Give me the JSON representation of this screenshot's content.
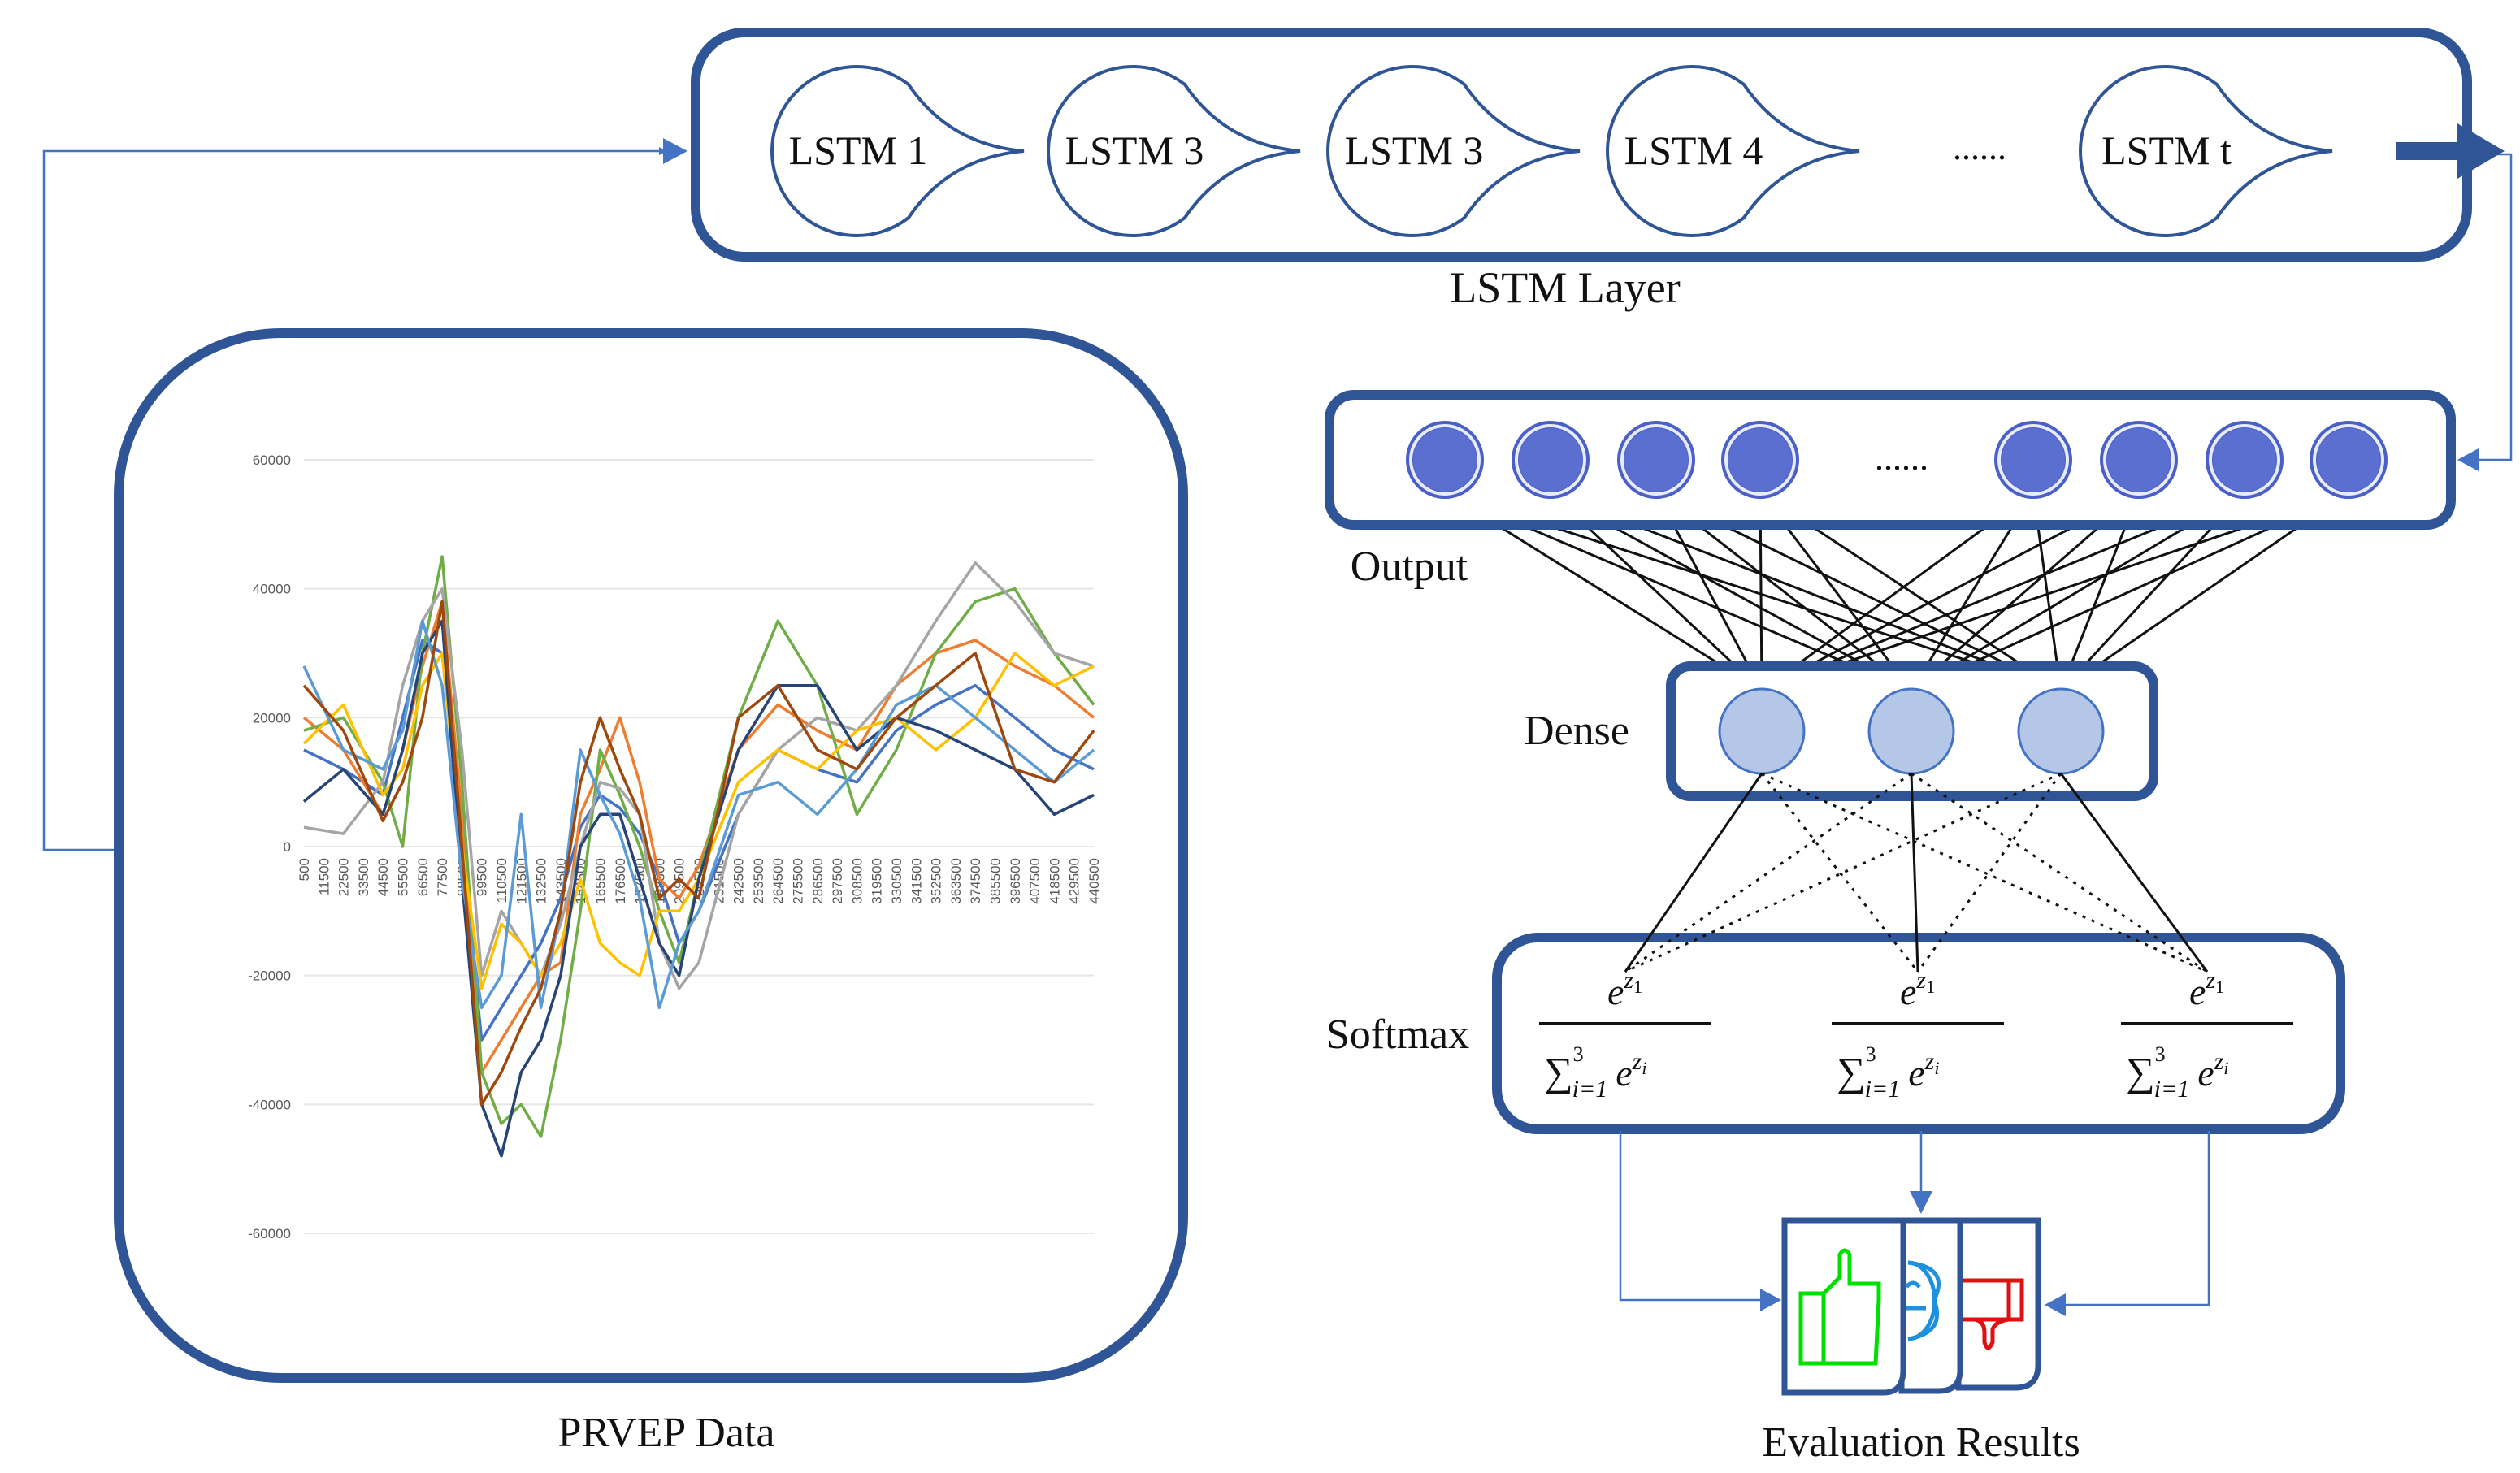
{
  "lstm_layer": {
    "label": "LSTM Layer",
    "cells": [
      "LSTM 1",
      "LSTM 3",
      "LSTM 3",
      "LSTM 4",
      "LSTM t"
    ],
    "ellipsis": "......"
  },
  "input": {
    "label": "PRVEP Data"
  },
  "output_layer": {
    "label": "Output",
    "ellipsis": "......",
    "node_count_visible": 8
  },
  "dense_layer": {
    "label": "Dense",
    "node_count": 3
  },
  "softmax_layer": {
    "label": "Softmax",
    "formula": {
      "num_base": "e",
      "num_sup": "z",
      "num_sub": "1",
      "sum": "∑",
      "sum_upper": "3",
      "sum_lower": "i=1",
      "den_base": "e",
      "den_sup": "z",
      "den_sub": "i"
    }
  },
  "evaluation": {
    "label": "Evaluation Results",
    "icons": [
      "thumbs-up-icon",
      "neutral-face-icon",
      "thumbs-down-icon"
    ],
    "colors": {
      "positive": "#00e000",
      "neutral": "#1e90e0",
      "negative": "#e01010"
    }
  },
  "colors": {
    "box_border": "#2f5597",
    "connector": "#4472c4",
    "output_node": "#5b6fd0",
    "dense_node": "#b4c7e7"
  },
  "chart_data": {
    "type": "line",
    "title": "",
    "xlabel": "",
    "ylabel": "",
    "ylim": [
      -60000,
      60000
    ],
    "yticks": [
      "60000",
      "40000",
      "20000",
      "0",
      "-20000",
      "-40000",
      "-60000"
    ],
    "ytick_values": [
      60000,
      40000,
      20000,
      0,
      -20000,
      -40000,
      -60000
    ],
    "xlim": [
      500,
      440500
    ],
    "xticks": [
      "500",
      "11500",
      "22500",
      "33500",
      "44500",
      "55500",
      "66500",
      "77500",
      "88500",
      "99500",
      "110500",
      "121500",
      "132500",
      "143500",
      "154500",
      "165500",
      "176500",
      "187500",
      "198500",
      "209500",
      "220500",
      "231500",
      "242500",
      "253500",
      "264500",
      "275500",
      "286500",
      "297500",
      "308500",
      "319500",
      "330500",
      "341500",
      "352500",
      "363500",
      "374500",
      "385500",
      "396500",
      "407500",
      "418500",
      "429500",
      "440500"
    ],
    "grid": true,
    "legend": "none",
    "x": [
      500,
      22500,
      44500,
      55500,
      66500,
      77500,
      88500,
      99500,
      110500,
      121500,
      132500,
      143500,
      154500,
      165500,
      176500,
      187500,
      198500,
      209500,
      220500,
      242500,
      264500,
      286500,
      308500,
      330500,
      352500,
      374500,
      396500,
      418500,
      440500
    ],
    "series": [
      {
        "color": "#4472c4",
        "values": [
          15000,
          12000,
          8000,
          20000,
          32000,
          30000,
          0,
          -30000,
          -25000,
          -20000,
          -15000,
          -8000,
          3000,
          8000,
          6000,
          2000,
          -5000,
          -15000,
          -10000,
          5000,
          15000,
          12000,
          10000,
          18000,
          22000,
          25000,
          20000,
          15000,
          12000
        ]
      },
      {
        "color": "#ed7d31",
        "values": [
          20000,
          15000,
          5000,
          15000,
          28000,
          38000,
          5000,
          -35000,
          -30000,
          -25000,
          -20000,
          -18000,
          5000,
          12000,
          20000,
          10000,
          -5000,
          -8000,
          -3000,
          15000,
          22000,
          18000,
          15000,
          25000,
          30000,
          32000,
          28000,
          25000,
          20000
        ]
      },
      {
        "color": "#70ad47",
        "values": [
          18000,
          20000,
          10000,
          0,
          30000,
          45000,
          10000,
          -35000,
          -43000,
          -40000,
          -45000,
          -30000,
          -10000,
          15000,
          8000,
          0,
          -10000,
          -18000,
          -5000,
          20000,
          35000,
          25000,
          5000,
          15000,
          30000,
          38000,
          40000,
          30000,
          22000
        ]
      },
      {
        "color": "#a5a5a5",
        "values": [
          3000,
          2000,
          10000,
          25000,
          35000,
          40000,
          15000,
          -20000,
          -10000,
          -15000,
          -20000,
          -12000,
          0,
          10000,
          9000,
          5000,
          -15000,
          -22000,
          -18000,
          5000,
          15000,
          20000,
          18000,
          25000,
          35000,
          44000,
          38000,
          30000,
          28000
        ]
      },
      {
        "color": "#ffc000",
        "values": [
          16000,
          22000,
          8000,
          12000,
          25000,
          30000,
          0,
          -22000,
          -12000,
          -15000,
          -20000,
          -15000,
          -5000,
          -15000,
          -18000,
          -20000,
          -10000,
          -10000,
          -5000,
          10000,
          15000,
          12000,
          18000,
          20000,
          15000,
          20000,
          30000,
          25000,
          28000
        ]
      },
      {
        "color": "#264478",
        "values": [
          7000,
          12000,
          5000,
          15000,
          30000,
          35000,
          -5000,
          -40000,
          -48000,
          -35000,
          -30000,
          -20000,
          0,
          5000,
          5000,
          -5000,
          -15000,
          -20000,
          -5000,
          15000,
          25000,
          25000,
          15000,
          20000,
          18000,
          15000,
          12000,
          5000,
          8000
        ]
      },
      {
        "color": "#5b9bd5",
        "values": [
          28000,
          15000,
          12000,
          18000,
          35000,
          25000,
          -5000,
          -25000,
          -20000,
          5000,
          -25000,
          -10000,
          15000,
          8000,
          2000,
          -8000,
          -25000,
          -15000,
          -10000,
          8000,
          10000,
          5000,
          12000,
          22000,
          25000,
          20000,
          15000,
          10000,
          15000
        ]
      },
      {
        "color": "#9e480e",
        "values": [
          25000,
          18000,
          4000,
          10000,
          20000,
          38000,
          0,
          -40000,
          -35000,
          -28000,
          -22000,
          -10000,
          10000,
          20000,
          12000,
          5000,
          -8000,
          -5000,
          -8000,
          20000,
          25000,
          15000,
          12000,
          20000,
          25000,
          30000,
          12000,
          10000,
          18000
        ]
      }
    ]
  }
}
